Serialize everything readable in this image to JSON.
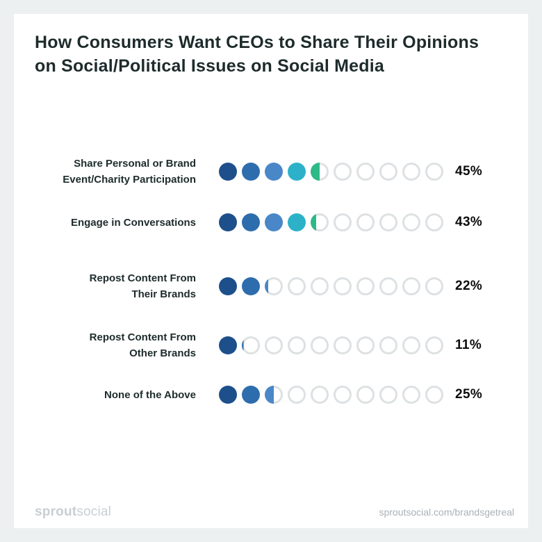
{
  "title": "How Consumers Want CEOs to Share Their Opinions\non Social/Political Issues on Social Media",
  "chart_data": {
    "type": "bar",
    "subtype": "dot-matrix",
    "title": "How Consumers Want CEOs to Share Their Opinions on Social/Political Issues on Social Media",
    "categories": [
      "Share Personal or Brand Event/Charity Participation",
      "Engage in Conversations",
      "Repost Content From Their Brands",
      "Repost Content From Other Brands",
      "None of the Above"
    ],
    "values": [
      45,
      43,
      22,
      11,
      25
    ],
    "unit": "%",
    "xlim": [
      0,
      100
    ],
    "dots_per_row": 10,
    "value_per_dot": 10,
    "dot_fill_colors": [
      "#1d4f8b",
      "#2e6dad",
      "#4a87c8",
      "#2cb1c9",
      "#2eb989"
    ],
    "empty_dot_ring_color": "#dde1e3",
    "grid": false,
    "legend": "none"
  },
  "rows": [
    {
      "label": "Share Personal or Brand\nEvent/Charity Participation",
      "value": 45,
      "value_label": "45%"
    },
    {
      "label": "Engage in Conversations",
      "value": 43,
      "value_label": "43%"
    },
    {
      "label": "Repost Content From\nTheir Brands",
      "value": 22,
      "value_label": "22%"
    },
    {
      "label": "Repost Content From\nOther Brands",
      "value": 11,
      "value_label": "11%"
    },
    {
      "label": "None of the Above",
      "value": 25,
      "value_label": "25%"
    }
  ],
  "footer": {
    "logo_bold": "sprout",
    "logo_light": "social",
    "url": "sproutsocial.com/brandsgetreal"
  },
  "colors": {
    "page_background": "#edf0f0",
    "card_background": "#ffffff",
    "title_text": "#1e2b2b",
    "label_text": "#1e2b2b",
    "percent_text": "#0c0c0c",
    "footer_logo": "#c9ced1",
    "footer_url": "#a9b1b6"
  }
}
